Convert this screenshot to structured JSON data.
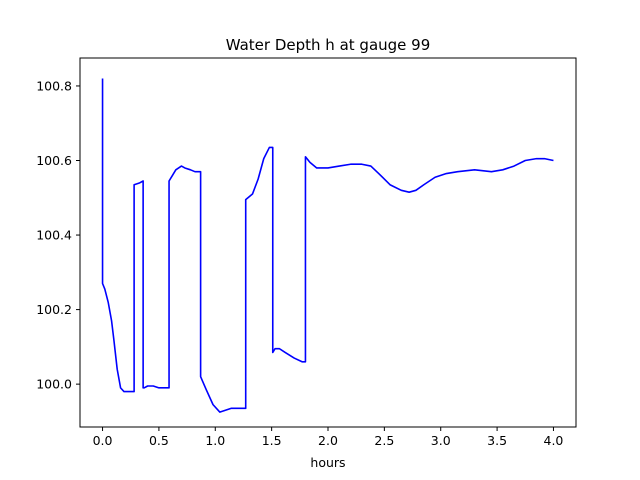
{
  "chart_data": {
    "type": "line",
    "title": "Water Depth h at gauge 99",
    "xlabel": "hours",
    "ylabel": "",
    "xlim": [
      -0.2,
      4.2
    ],
    "ylim": [
      99.885,
      100.875
    ],
    "xticks": [
      0.0,
      0.5,
      1.0,
      1.5,
      2.0,
      2.5,
      3.0,
      3.5,
      4.0
    ],
    "xtick_labels": [
      "0.0",
      "0.5",
      "1.0",
      "1.5",
      "2.0",
      "2.5",
      "3.0",
      "3.5",
      "4.0"
    ],
    "yticks": [
      100.0,
      100.2,
      100.4,
      100.6,
      100.8
    ],
    "ytick_labels": [
      "100.0",
      "100.2",
      "100.4",
      "100.6",
      "100.8"
    ],
    "grid": false,
    "legend": "none",
    "series": [
      {
        "color": "#0000ff",
        "x": [
          0.0,
          0.0,
          0.0,
          0.02,
          0.05,
          0.08,
          0.1,
          0.13,
          0.16,
          0.19,
          0.22,
          0.25,
          0.27,
          0.28,
          0.28,
          0.33,
          0.36,
          0.36,
          0.37,
          0.4,
          0.43,
          0.45,
          0.5,
          0.55,
          0.58,
          0.59,
          0.59,
          0.62,
          0.65,
          0.7,
          0.73,
          0.78,
          0.82,
          0.86,
          0.87,
          0.87,
          0.92,
          0.98,
          1.04,
          1.09,
          1.14,
          1.18,
          1.21,
          1.26,
          1.27,
          1.27,
          1.33,
          1.38,
          1.43,
          1.48,
          1.51,
          1.51,
          1.53,
          1.57,
          1.62,
          1.7,
          1.77,
          1.8,
          1.8,
          1.84,
          1.9,
          2.0,
          2.1,
          2.2,
          2.3,
          2.38,
          2.45,
          2.55,
          2.65,
          2.72,
          2.78,
          2.85,
          2.95,
          3.05,
          3.15,
          3.3,
          3.45,
          3.55,
          3.65,
          3.75,
          3.85,
          3.92,
          4.0
        ],
        "y": [
          100.82,
          100.27,
          100.27,
          100.255,
          100.22,
          100.17,
          100.12,
          100.04,
          99.99,
          99.98,
          99.98,
          99.98,
          99.98,
          99.98,
          100.535,
          100.54,
          100.545,
          99.99,
          99.99,
          99.995,
          99.995,
          99.995,
          99.99,
          99.99,
          99.99,
          99.99,
          100.545,
          100.56,
          100.575,
          100.585,
          100.58,
          100.575,
          100.57,
          100.57,
          100.57,
          100.02,
          99.985,
          99.945,
          99.925,
          99.93,
          99.935,
          99.935,
          99.935,
          99.935,
          99.935,
          100.495,
          100.51,
          100.55,
          100.605,
          100.635,
          100.635,
          100.085,
          100.095,
          100.095,
          100.085,
          100.07,
          100.06,
          100.06,
          100.61,
          100.595,
          100.58,
          100.58,
          100.585,
          100.59,
          100.59,
          100.585,
          100.565,
          100.535,
          100.52,
          100.515,
          100.52,
          100.535,
          100.555,
          100.565,
          100.57,
          100.575,
          100.57,
          100.575,
          100.585,
          100.6,
          100.605,
          100.605,
          100.6
        ]
      }
    ]
  }
}
